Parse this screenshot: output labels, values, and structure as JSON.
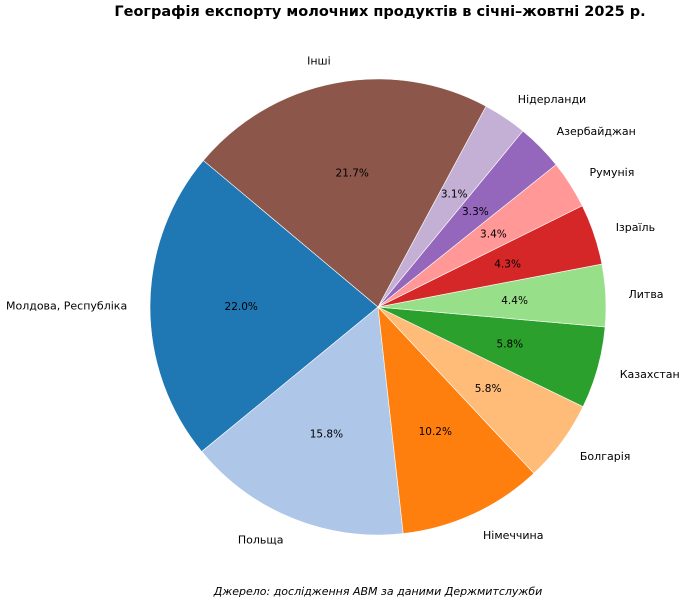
{
  "chart_data": {
    "type": "pie",
    "title": "Географія експорту молочних продуктів в січні–жовтні 2025 р.",
    "source": "Джерело: дослідження АВМ за даними Держмитслужби",
    "start_angle_deg": 140,
    "direction": "counterclockwise",
    "slices": [
      {
        "label": "Молдова, Республіка",
        "value": 22.0,
        "value_label": "22.0%",
        "color": "#1f77b4"
      },
      {
        "label": "Польща",
        "value": 15.8,
        "value_label": "15.8%",
        "color": "#aec7e8"
      },
      {
        "label": "Німеччина",
        "value": 10.2,
        "value_label": "10.2%",
        "color": "#ff7f0e"
      },
      {
        "label": "Болгарія",
        "value": 5.8,
        "value_label": "5.8%",
        "color": "#ffbb78"
      },
      {
        "label": "Казахстан",
        "value": 5.8,
        "value_label": "5.8%",
        "color": "#2ca02c"
      },
      {
        "label": "Литва",
        "value": 4.4,
        "value_label": "4.4%",
        "color": "#98df8a"
      },
      {
        "label": "Ізраїль",
        "value": 4.3,
        "value_label": "4.3%",
        "color": "#d62728"
      },
      {
        "label": "Румунія",
        "value": 3.4,
        "value_label": "3.4%",
        "color": "#ff9896"
      },
      {
        "label": "Азербайджан",
        "value": 3.3,
        "value_label": "3.3%",
        "color": "#9467bd"
      },
      {
        "label": "Нідерланди",
        "value": 3.1,
        "value_label": "3.1%",
        "color": "#c5b0d5"
      },
      {
        "label": "Інші",
        "value": 21.7,
        "value_label": "21.7%",
        "color": "#8c564b"
      }
    ]
  }
}
